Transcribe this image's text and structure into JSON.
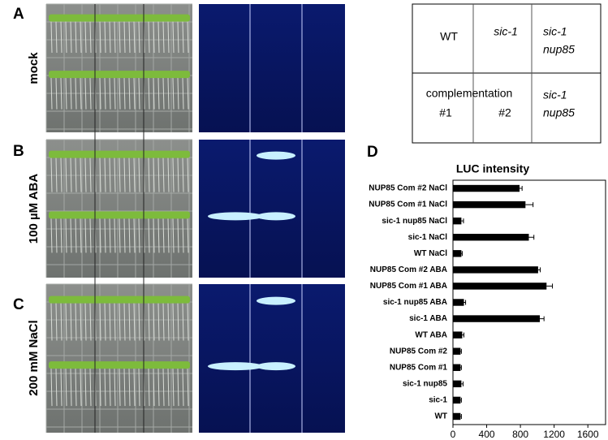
{
  "labels": {
    "A": "A",
    "B": "B",
    "C": "C",
    "D": "D"
  },
  "rows": [
    "mock",
    "100 µM ABA",
    "200 mM NaCl"
  ],
  "layout": {
    "top": [
      "WT",
      "sic-1",
      [
        "sic-1",
        "nup85"
      ]
    ],
    "bottom": [
      "complementation",
      "#1",
      "#2",
      [
        "sic-1",
        "nup85"
      ]
    ]
  },
  "chart_data": {
    "type": "barh",
    "title": "LUC intensity",
    "categories": [
      "NUP85 Com #2 NaCl",
      "NUP85 Com #1 NaCl",
      "sic-1 nup85 NaCl",
      "sic-1 NaCl",
      "WT NaCl",
      "NUP85 Com #2 ABA",
      "NUP85 Com #1 ABA",
      "sic-1 nup85 ABA",
      "sic-1 ABA",
      "WT ABA",
      "NUP85 Com #2",
      "NUP85 Com #1",
      "sic-1 nup85",
      "sic-1",
      "WT"
    ],
    "values": [
      790,
      860,
      100,
      900,
      100,
      1010,
      1110,
      130,
      1030,
      110,
      90,
      90,
      100,
      90,
      90
    ],
    "errors": [
      30,
      90,
      25,
      60,
      10,
      25,
      70,
      20,
      50,
      20,
      10,
      10,
      20,
      10,
      10
    ],
    "color": "#000000",
    "xlim": [
      0,
      1810
    ],
    "xticks": [
      0,
      400,
      800,
      1200,
      1600
    ]
  }
}
